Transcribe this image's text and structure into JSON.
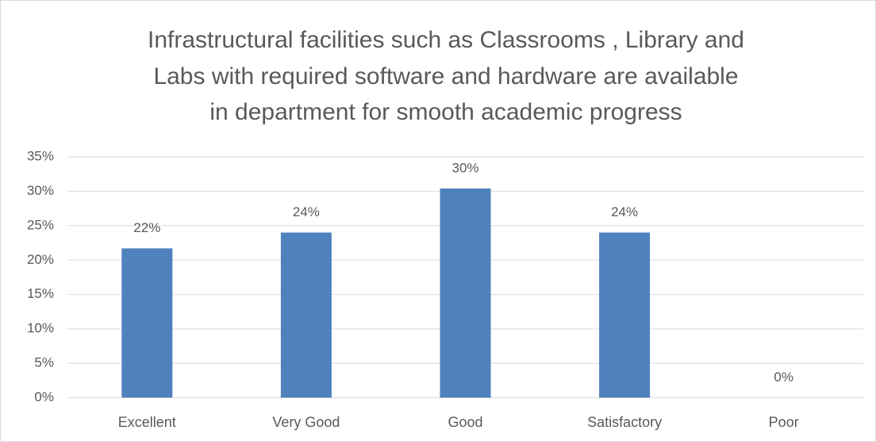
{
  "chart_data": {
    "type": "bar",
    "title": [
      "Infrastructural  facilities such as Classrooms , Library and",
      "Labs with required software and hardware are available",
      "in department for smooth academic progress"
    ],
    "categories": [
      "Excellent",
      "Very Good",
      "Good",
      "Satisfactory",
      "Poor"
    ],
    "values": [
      21.7,
      24,
      30.4,
      24,
      0
    ],
    "value_labels": [
      "22%",
      "24%",
      "30%",
      "24%",
      "0%"
    ],
    "color": "#4f81bd",
    "ylim": [
      0,
      35
    ],
    "yticks": [
      {
        "value": 0,
        "label": "0%"
      },
      {
        "value": 5,
        "label": "5%"
      },
      {
        "value": 10,
        "label": "10%"
      },
      {
        "value": 15,
        "label": "15%"
      },
      {
        "value": 20,
        "label": "20%"
      },
      {
        "value": 25,
        "label": "25%"
      },
      {
        "value": 30,
        "label": "30%"
      },
      {
        "value": 35,
        "label": "35%"
      }
    ],
    "grid": true
  }
}
